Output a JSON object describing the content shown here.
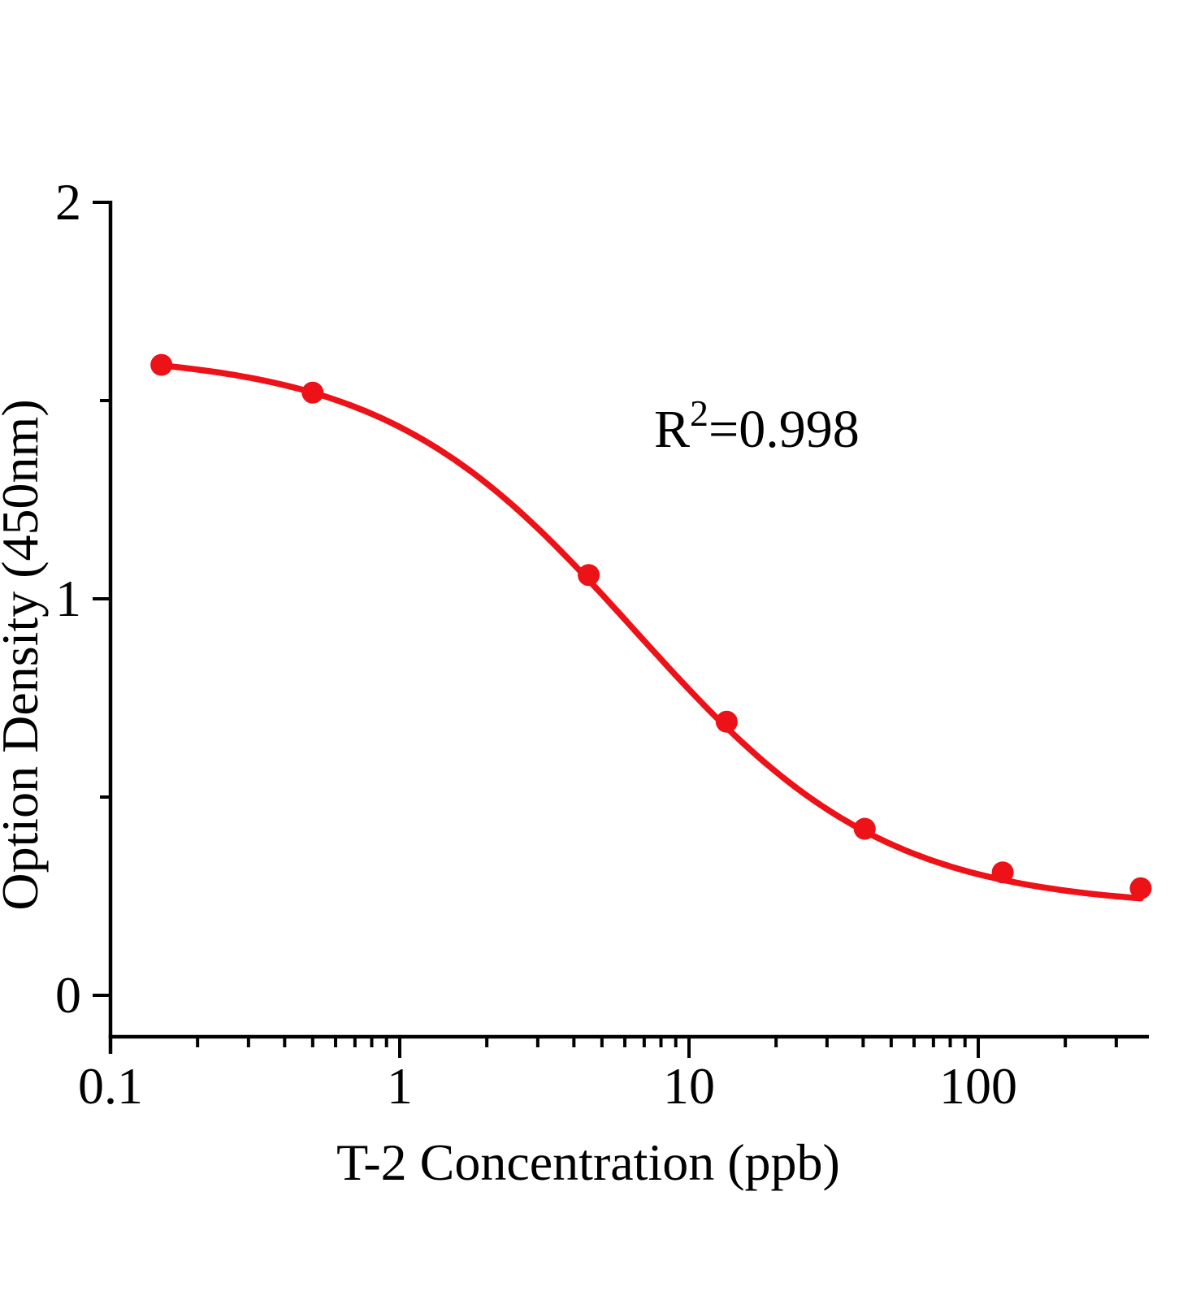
{
  "page": {
    "background": "#ffffff"
  },
  "chart_data": {
    "type": "scatter",
    "title": "",
    "xlabel": "T-2 Concentration（ppb）",
    "ylabel": "Option Density（450nm）",
    "x_scale": "log",
    "xlim": [
      0.1,
      390
    ],
    "ylim": [
      0,
      2
    ],
    "grid": false,
    "legend": null,
    "annotation": {
      "base": "R",
      "exponent": "2",
      "suffix": "=0.998",
      "display": "R²=0.998"
    },
    "x_major_ticks": [
      {
        "value": 0.1,
        "label": "0.1"
      },
      {
        "value": 1,
        "label": "1"
      },
      {
        "value": 10,
        "label": "10"
      },
      {
        "value": 100,
        "label": "100"
      }
    ],
    "x_minor_ticks": [
      0.2,
      0.3,
      0.4,
      0.5,
      0.6,
      0.7,
      0.8,
      0.9,
      2,
      3,
      4,
      5,
      6,
      7,
      8,
      9,
      20,
      30,
      40,
      50,
      60,
      70,
      80,
      90,
      200,
      300
    ],
    "y_major_ticks": [
      {
        "value": 0,
        "label": "0"
      },
      {
        "value": 1,
        "label": "1"
      },
      {
        "value": 2,
        "label": "2"
      }
    ],
    "y_minor_ticks": [
      0.5,
      1.5
    ],
    "series": [
      {
        "name": "standard-points",
        "type": "scatter",
        "color": "#ED1118",
        "x": [
          0.15,
          0.5,
          4.5,
          13.5,
          40.5,
          121.5,
          364.5
        ],
        "y": [
          1.59,
          1.52,
          1.06,
          0.69,
          0.42,
          0.31,
          0.27
        ]
      },
      {
        "name": "4pl-fit-curve",
        "type": "line",
        "color": "#ED1118",
        "model": "4PL",
        "params": {
          "A": 1.62,
          "B": 1.0,
          "C": 6.5,
          "D": 0.22
        },
        "x_range": [
          0.15,
          364.5
        ]
      }
    ],
    "colors": {
      "axis": "#000000",
      "text": "#000000",
      "curve": "#ED1118",
      "points": "#ED1118"
    }
  }
}
